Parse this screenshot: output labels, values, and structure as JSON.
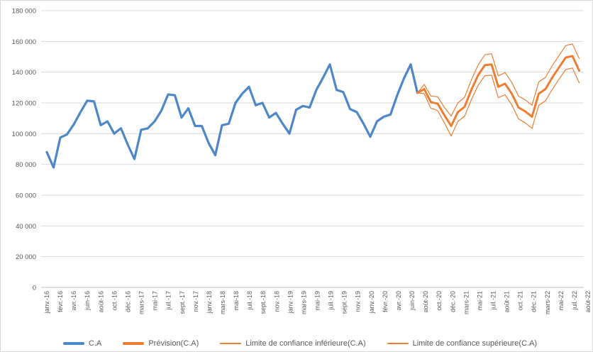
{
  "legend": {
    "items": [
      {
        "label": "C.A",
        "color": "#4e87c8",
        "thick": true
      },
      {
        "label": "Prévision(C.A)",
        "color": "#ed7d31",
        "thick": true
      },
      {
        "label": "Limite de confiance inférieure(C.A)",
        "color": "#ed7d31",
        "thick": false
      },
      {
        "label": "Limite de confiance supérieure(C.A)",
        "color": "#ed7d31",
        "thick": false
      }
    ]
  },
  "chart_data": {
    "type": "line",
    "title": "",
    "xlabel": "",
    "ylabel": "",
    "grid": true,
    "legend_position": "bottom",
    "background": "#ffffff",
    "gridline_color": "#d9d9d9",
    "axis_color": "#bfbfbf",
    "label_color": "#595959",
    "y_axis": {
      "min": 0,
      "max": 180000,
      "step": 20000,
      "tick_labels": [
        "0",
        "20 000",
        "40 000",
        "60 000",
        "80 000",
        "100 000",
        "120 000",
        "140 000",
        "160 000",
        "180 000"
      ]
    },
    "x_axis": {
      "tick_labels": [
        "janv.-16",
        "févr.-16",
        "avr.-16",
        "juin-16",
        "août-16",
        "oct.-16",
        "déc.-16",
        "mars-17",
        "mai-17",
        "juil.-17",
        "sept.-17",
        "nov.-17",
        "janv.-18",
        "mars-18",
        "mai-18",
        "juil.-18",
        "sept.-18",
        "nov.-18",
        "janv.-19",
        "mars-19",
        "mai-19",
        "juil.-19",
        "sept.-19",
        "nov.-19",
        "janv.-20",
        "févr.-20",
        "avr.-20",
        "juin-20",
        "août-20",
        "oct.-20",
        "déc.-20",
        "mars-21",
        "mai-21",
        "juil.-21",
        "août-21",
        "oct.-21",
        "déc.-21",
        "mars-22",
        "mai-22",
        "juil.-22",
        "août-22"
      ],
      "months_span": "janv.-16 à août-22",
      "total_points": 80
    },
    "series": [
      {
        "name": "C.A",
        "color": "#4e87c8",
        "width": 3.2,
        "start_index": 0,
        "values": [
          88000,
          78000,
          97500,
          99500,
          106000,
          114000,
          121500,
          121000,
          105500,
          108000,
          100000,
          103500,
          93000,
          83500,
          102500,
          103500,
          108000,
          115000,
          125500,
          125000,
          110500,
          116500,
          105000,
          105000,
          94000,
          86000,
          105500,
          106500,
          120000,
          126000,
          130500,
          118500,
          120000,
          110500,
          113500,
          106500,
          100000,
          115500,
          118000,
          117000,
          128500,
          136500,
          145000,
          128500,
          127000,
          116000,
          114000,
          106500,
          98000,
          108000,
          111000,
          112500,
          125000,
          136000,
          145000,
          126500
        ]
      },
      {
        "name": "Prévision(C.A)",
        "color": "#ed7d31",
        "width": 3,
        "start_index": 55,
        "values": [
          126500,
          129000,
          120500,
          119500,
          112000,
          105000,
          114000,
          117500,
          128500,
          138000,
          144500,
          145000,
          130500,
          132500,
          126000,
          117000,
          114500,
          111000,
          126000,
          129000,
          136500,
          143000,
          149500,
          150500,
          141000
        ]
      },
      {
        "name": "Limite de confiance inférieure(C.A)",
        "color": "#ed7d31",
        "width": 1.2,
        "start_index": 55,
        "values": [
          126500,
          126000,
          116500,
          115000,
          107000,
          98500,
          108000,
          111300,
          122100,
          131400,
          137700,
          138000,
          123400,
          125300,
          118700,
          109600,
          107000,
          103500,
          118400,
          121400,
          128800,
          135300,
          141700,
          142700,
          133100
        ]
      },
      {
        "name": "Limite de confiance supérieure(C.A)",
        "color": "#ed7d31",
        "width": 1.2,
        "start_index": 55,
        "values": [
          126500,
          132000,
          124500,
          124000,
          117000,
          111500,
          120000,
          123700,
          134900,
          144600,
          151300,
          152000,
          137600,
          139700,
          133300,
          124400,
          122000,
          118500,
          133600,
          136600,
          144200,
          150700,
          157300,
          158300,
          148900
        ]
      }
    ]
  }
}
